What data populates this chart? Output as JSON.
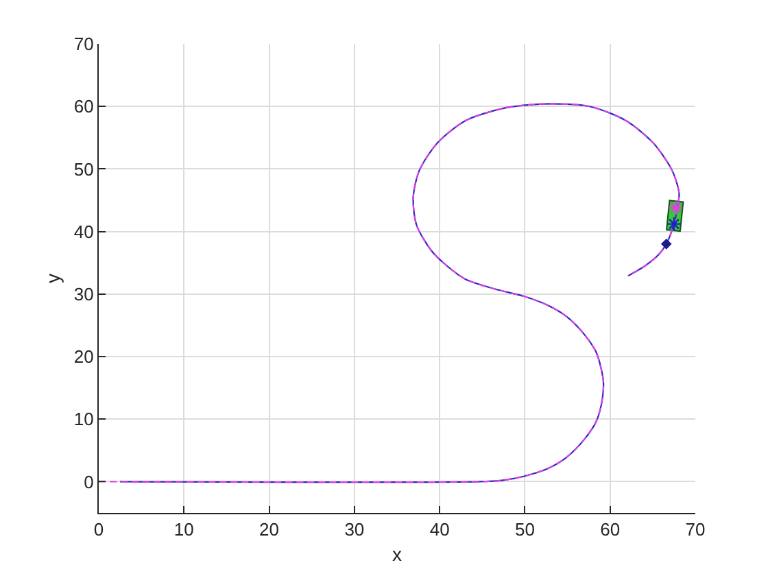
{
  "chart_data": {
    "type": "line",
    "xlabel": "x",
    "ylabel": "y",
    "xlim": [
      0,
      70
    ],
    "ylim": [
      -5,
      70
    ],
    "xticks": [
      0,
      10,
      20,
      30,
      40,
      50,
      60,
      70
    ],
    "yticks": [
      0,
      10,
      20,
      30,
      40,
      50,
      60,
      70
    ],
    "grid": true,
    "series": [
      {
        "color": "#2a2ac0",
        "line_style": "solid",
        "x": [
          2.5,
          44.6,
          47.3,
          50,
          52.7,
          54.9,
          57,
          58.4,
          59.1,
          59.2,
          58.4,
          57,
          54.9,
          52.7,
          50,
          46.5,
          43,
          40.6,
          39,
          37.3,
          36.9,
          37.6,
          39.7,
          43,
          47.5,
          52.2,
          57.6,
          61.9,
          65.1,
          67.3,
          68.1,
          67.9,
          67.5,
          66.6,
          65.7,
          64.1,
          62.1
        ],
        "values": [
          0,
          0,
          0.2,
          0.9,
          2.1,
          3.9,
          6.8,
          9.7,
          13.3,
          16.2,
          20.6,
          23.5,
          26.4,
          28.2,
          29.6,
          30.8,
          32.4,
          34.8,
          37,
          41,
          45.4,
          49.7,
          54.1,
          57.7,
          59.7,
          60.4,
          60,
          57.7,
          54.1,
          49.7,
          46.1,
          43.8,
          41.2,
          38,
          36.3,
          34.5,
          32.9
        ]
      },
      {
        "color": "#e040e0",
        "line_style": "dashed",
        "x": [
          0,
          44.6,
          47.3,
          50,
          52.7,
          54.9,
          57,
          58.4,
          59.1,
          59.2,
          58.4,
          57,
          54.9,
          52.7,
          50,
          46.5,
          43,
          40.6,
          39,
          37.3,
          36.9,
          37.6,
          39.7,
          43,
          47.5,
          52.2,
          57.6,
          61.9,
          65.1,
          67.3,
          68.1,
          67.9,
          67.5,
          66.6,
          65.7,
          64.1,
          62.1
        ],
        "values": [
          0,
          0,
          0.2,
          0.9,
          2.1,
          3.9,
          6.8,
          9.7,
          13.3,
          16.2,
          20.6,
          23.5,
          26.4,
          28.2,
          29.6,
          30.8,
          32.4,
          34.8,
          37,
          41,
          45.4,
          49.7,
          54.1,
          57.7,
          59.7,
          60.4,
          60,
          57.7,
          54.1,
          49.7,
          46.1,
          43.8,
          41.2,
          38,
          36.3,
          34.5,
          32.9
        ]
      },
      {
        "type": "scatter",
        "color": "#e040e0",
        "marker": "cross",
        "x": [
          67.7
        ],
        "values": [
          43.8
        ]
      },
      {
        "type": "scatter",
        "color": "#2020c0",
        "marker": "cross",
        "x": [
          67.5
        ],
        "values": [
          41.2
        ]
      },
      {
        "type": "scatter",
        "color": "#1a1a8c",
        "marker": "diamond",
        "x": [
          66.6
        ],
        "values": [
          38
        ]
      }
    ]
  }
}
